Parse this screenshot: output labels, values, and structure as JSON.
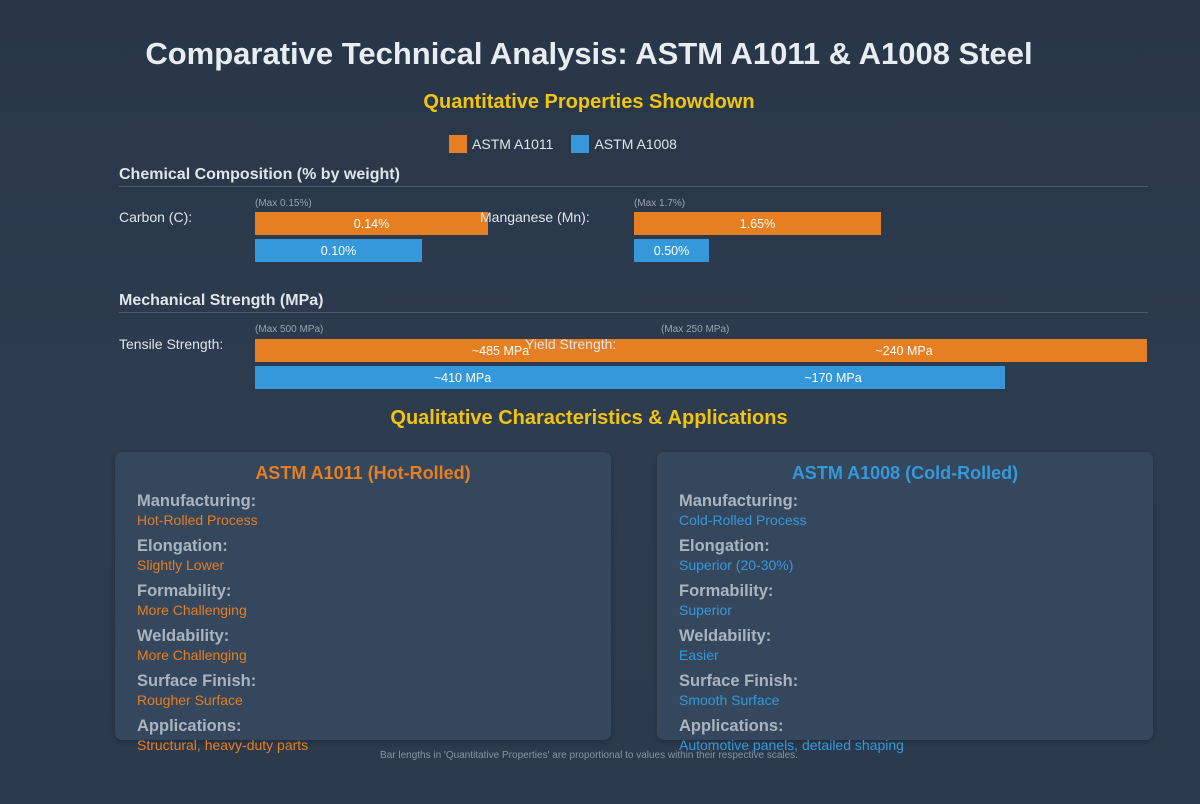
{
  "title": "Comparative Technical Analysis: ASTM A1011 & A1008 Steel",
  "quant_title": "Quantitative Properties Showdown",
  "qual_title": "Qualitative Characteristics & Applications",
  "footnote": "Bar lengths in 'Quantitative Properties' are proportional to values within their respective scales.",
  "colors": {
    "a1011": "#e67e22",
    "a1008": "#3498db",
    "accent": "#f1c40f"
  },
  "chart_data": {
    "type": "bar",
    "legend": [
      "ASTM A1011",
      "ASTM A1008"
    ],
    "legend_position": "top-center",
    "groups": [
      {
        "title": "Chemical Composition (% by weight)",
        "metrics": [
          {
            "label": "Carbon (C):",
            "max_note": "(Max 0.15%)",
            "max": 0.15,
            "series": [
              {
                "name": "ASTM A1011",
                "value": 0.14,
                "label": "0.14%"
              },
              {
                "name": "ASTM A1008",
                "value": 0.1,
                "label": "0.10%"
              }
            ]
          },
          {
            "label": "Manganese (Mn):",
            "max_note": "(Max 1.7%)",
            "max": 1.7,
            "series": [
              {
                "name": "ASTM A1011",
                "value": 1.65,
                "label": "1.65%"
              },
              {
                "name": "ASTM A1008",
                "value": 0.5,
                "label": "0.50%"
              }
            ]
          }
        ]
      },
      {
        "title": "Mechanical Strength (MPa)",
        "metrics": [
          {
            "label": "Tensile Strength:",
            "max_note": "(Max 500 MPa)",
            "max": 500,
            "series": [
              {
                "name": "ASTM A1011",
                "value": 485,
                "label": "~485 MPa"
              },
              {
                "name": "ASTM A1008",
                "value": 410,
                "label": "~410 MPa"
              }
            ]
          },
          {
            "label": "Yield Strength:",
            "max_note": "(Max 250 MPa)",
            "max": 250,
            "series": [
              {
                "name": "ASTM A1011",
                "value": 240,
                "label": "~240 MPa"
              },
              {
                "name": "ASTM A1008",
                "value": 170,
                "label": "~170 MPa"
              }
            ]
          }
        ]
      }
    ]
  },
  "cards": [
    {
      "title": "ASTM A1011 (Hot-Rolled)",
      "attributes": [
        {
          "label": "Manufacturing:",
          "value": "Hot-Rolled Process"
        },
        {
          "label": "Elongation:",
          "value": "Slightly Lower"
        },
        {
          "label": "Formability:",
          "value": "More Challenging"
        },
        {
          "label": "Weldability:",
          "value": "More Challenging"
        },
        {
          "label": "Surface Finish:",
          "value": "Rougher Surface"
        },
        {
          "label": "Applications:",
          "value": "Structural, heavy-duty parts"
        }
      ]
    },
    {
      "title": "ASTM A1008 (Cold-Rolled)",
      "attributes": [
        {
          "label": "Manufacturing:",
          "value": "Cold-Rolled Process"
        },
        {
          "label": "Elongation:",
          "value": "Superior (20-30%)"
        },
        {
          "label": "Formability:",
          "value": "Superior"
        },
        {
          "label": "Weldability:",
          "value": "Easier"
        },
        {
          "label": "Surface Finish:",
          "value": "Smooth Surface"
        },
        {
          "label": "Applications:",
          "value": "Automotive panels, detailed shaping"
        }
      ]
    }
  ]
}
